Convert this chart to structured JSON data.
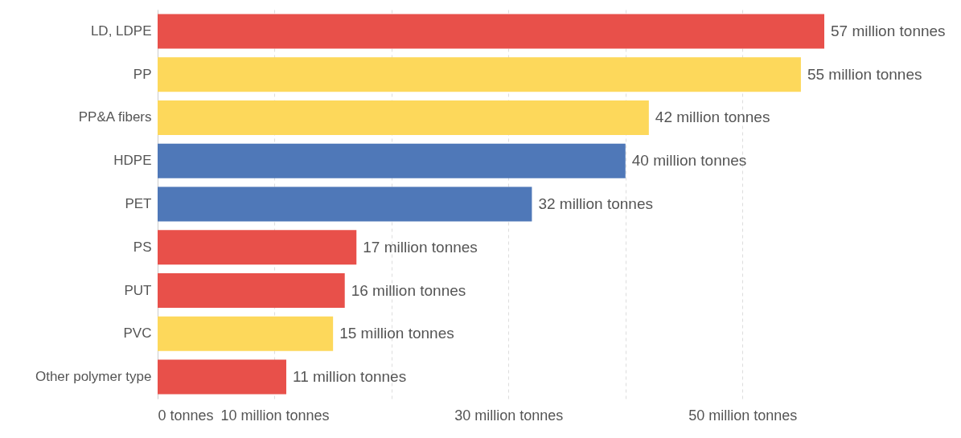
{
  "chart_data": {
    "type": "bar",
    "orientation": "horizontal",
    "categories": [
      "LD, LDPE",
      "PP",
      "PP&A fibers",
      "HDPE",
      "PET",
      "PS",
      "PUT",
      "PVC",
      "Other polymer type"
    ],
    "values": [
      57,
      55,
      42,
      40,
      32,
      17,
      16,
      15,
      11
    ],
    "colors": [
      "#e8504a",
      "#fdd85b",
      "#fdd85b",
      "#4f78b8",
      "#4f78b8",
      "#e8504a",
      "#e8504a",
      "#fdd85b",
      "#e8504a"
    ],
    "value_labels": [
      "57 million tonnes",
      "55 million tonnes",
      "42 million tonnes",
      "40 million tonnes",
      "32 million tonnes",
      "17 million tonnes",
      "16 million tonnes",
      "15 million tonnes",
      "11 million tonnes"
    ],
    "xlim": [
      0,
      57
    ],
    "xticks": [
      {
        "value": 0,
        "label": "0 tonnes"
      },
      {
        "value": 10,
        "label": "10 million tonnes"
      },
      {
        "value": 20,
        "label": null
      },
      {
        "value": 30,
        "label": "30 million tonnes"
      },
      {
        "value": 40,
        "label": null
      },
      {
        "value": 50,
        "label": "50 million tonnes"
      }
    ],
    "grid": "x"
  }
}
